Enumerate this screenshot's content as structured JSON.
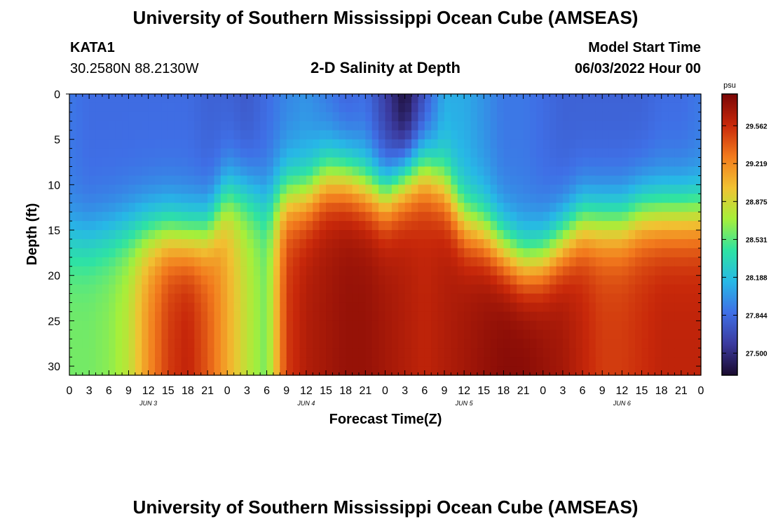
{
  "header": {
    "title": "University of Southern Mississippi Ocean Cube (AMSEAS)",
    "station": "KATA1",
    "coords": "30.2580N  88.2130W",
    "chart_title": "2-D Salinity at Depth",
    "model_start_label": "Model Start Time",
    "model_start_value": "06/03/2022 Hour 00"
  },
  "footer": {
    "title": "University of Southern Mississippi Ocean Cube (AMSEAS)"
  },
  "colors": {
    "colormap": [
      "#1a0a2e",
      "#3b3a9e",
      "#3f6fe6",
      "#27b8e6",
      "#2ee3a3",
      "#a6ef3a",
      "#f1c232",
      "#f27a1d",
      "#c8280a",
      "#7a0606"
    ]
  },
  "chart_data": {
    "type": "heatmap",
    "title": "2-D Salinity at Depth",
    "xlabel": "Forecast Time(Z)",
    "ylabel": "Depth (ft)",
    "x_tick_labels": [
      "0",
      "3",
      "6",
      "9",
      "12",
      "15",
      "18",
      "21",
      "0",
      "3",
      "6",
      "9",
      "12",
      "15",
      "18",
      "21",
      "0",
      "3",
      "6",
      "9",
      "12",
      "15",
      "18",
      "21",
      "0",
      "3",
      "6",
      "9",
      "12",
      "15",
      "18",
      "21",
      "0"
    ],
    "date_labels": [
      {
        "label": "JUN 3",
        "hour": 12
      },
      {
        "label": "JUN 4",
        "hour": 36
      },
      {
        "label": "JUN 5",
        "hour": 60
      },
      {
        "label": "JUN 6",
        "hour": 84
      }
    ],
    "x_range_hours": [
      0,
      96
    ],
    "y_tick_labels": [
      "0",
      "5",
      "10",
      "15",
      "20",
      "25",
      "30"
    ],
    "y_range_ft": [
      0,
      31
    ],
    "colorbar": {
      "unit": "psu",
      "min": 27.3,
      "max": 29.85,
      "tick_labels": [
        "29.562",
        "29.219",
        "28.875",
        "28.531",
        "28.188",
        "27.844",
        "27.500"
      ]
    },
    "profiles_hours": [
      0,
      3,
      6,
      9,
      12,
      15,
      18,
      21,
      24,
      27,
      30,
      33,
      36,
      39,
      42,
      45,
      48,
      51,
      54,
      57,
      60,
      63,
      66,
      69,
      72,
      75,
      78,
      81,
      84,
      87,
      90,
      93,
      96
    ],
    "surface_salinity_psu": [
      27.9,
      27.85,
      27.85,
      27.85,
      27.85,
      27.85,
      27.85,
      27.8,
      27.8,
      27.75,
      27.85,
      27.95,
      28.0,
      27.9,
      27.8,
      27.85,
      27.6,
      27.3,
      27.7,
      28.1,
      28.1,
      28.0,
      27.9,
      27.9,
      27.85,
      27.8,
      27.8,
      27.8,
      27.8,
      27.8,
      27.85,
      27.85,
      27.9
    ],
    "halocline_depth_ft": [
      16,
      16,
      15.5,
      15,
      15,
      15,
      15.5,
      15,
      11,
      11,
      12,
      11,
      11,
      9,
      9,
      10,
      11,
      9,
      8,
      10,
      14,
      15,
      17,
      18.5,
      18,
      16,
      14,
      14,
      14,
      13,
      13,
      13,
      13
    ],
    "bottom_salinity_psu": [
      28.6,
      28.6,
      28.65,
      28.8,
      29.2,
      29.5,
      29.6,
      29.4,
      29.1,
      28.8,
      28.6,
      29.5,
      29.65,
      29.7,
      29.75,
      29.75,
      29.7,
      29.65,
      29.6,
      29.65,
      29.7,
      29.75,
      29.8,
      29.8,
      29.75,
      29.7,
      29.6,
      29.5,
      29.5,
      29.55,
      29.6,
      29.6,
      29.6
    ]
  }
}
